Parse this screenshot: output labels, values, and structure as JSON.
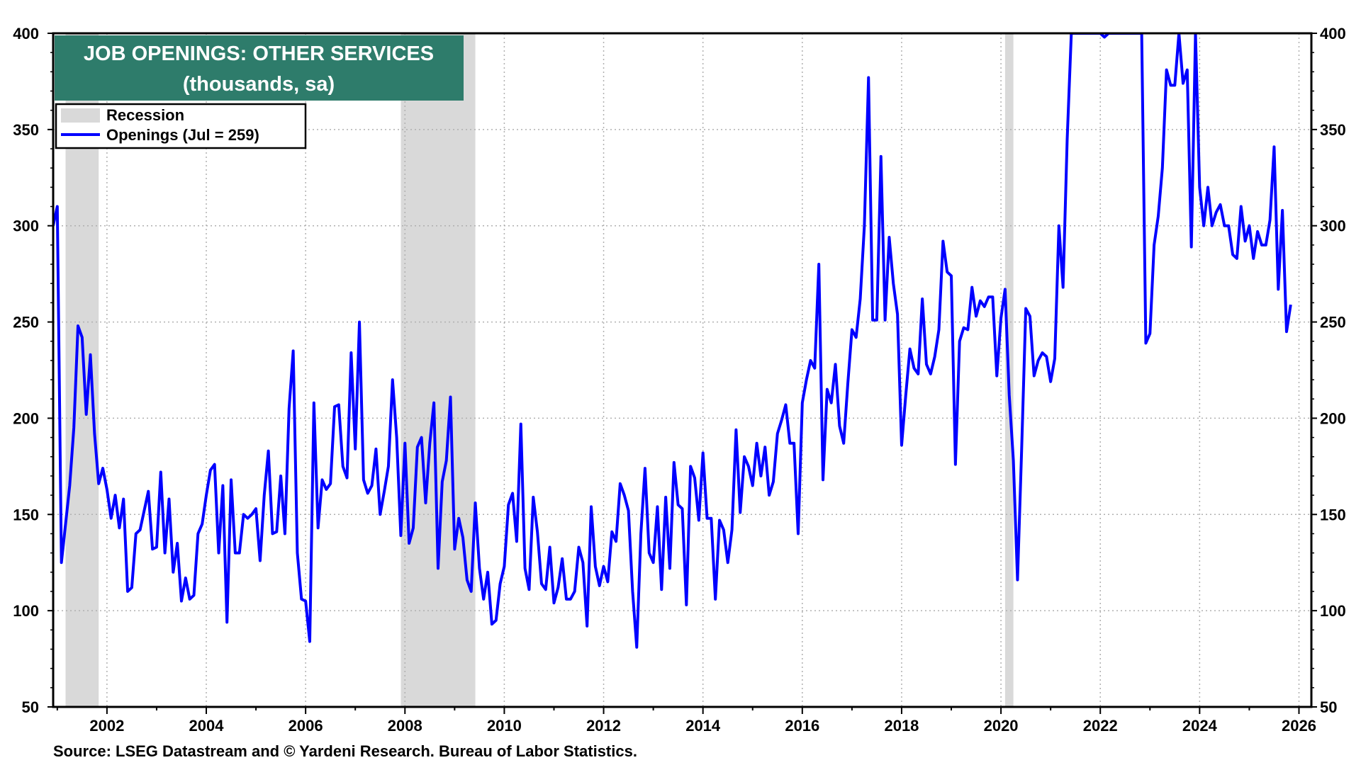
{
  "chart_data": {
    "type": "line",
    "title": "JOB OPENINGS: OTHER SERVICES",
    "subtitle": "(thousands, sa)",
    "source": "Source: LSEG Datastream and © Yardeni Research. Bureau of Labor Statistics.",
    "legend": {
      "placement": "top-left",
      "recession_label": "Recession",
      "series_label": "Openings (Jul = 259)"
    },
    "ylim": [
      50,
      400
    ],
    "yticks": [
      50,
      100,
      150,
      200,
      250,
      300,
      350,
      400
    ],
    "xlim": [
      2000.917,
      2026.25
    ],
    "xticks": [
      2002,
      2004,
      2006,
      2008,
      2010,
      2012,
      2014,
      2016,
      2018,
      2020,
      2022,
      2024,
      2026
    ],
    "grid": true,
    "recessions": [
      {
        "start": 2001.167,
        "end": 2001.833
      },
      {
        "start": 2007.917,
        "end": 2009.417
      },
      {
        "start": 2020.083,
        "end": 2020.25
      }
    ],
    "colors": {
      "series": "#0000ff",
      "recession": "#d9d9d9",
      "title_bg": "#2e7c6b",
      "title_text": "#ffffff",
      "grid": "#b0b0b0"
    },
    "series": [
      {
        "name": "Openings (Jul = 259)",
        "start": "2000-12",
        "frequency": "monthly",
        "values": [
          300,
          310,
          125,
          145,
          165,
          195,
          248,
          242,
          202,
          233,
          192,
          166,
          174,
          163,
          148,
          160,
          143,
          158,
          110,
          112,
          140,
          142,
          152,
          162,
          132,
          133,
          172,
          130,
          158,
          120,
          135,
          105,
          117,
          106,
          108,
          140,
          145,
          160,
          173,
          176,
          130,
          165,
          94,
          168,
          130,
          130,
          150,
          148,
          150,
          153,
          126,
          160,
          183,
          140,
          141,
          170,
          140,
          205,
          235,
          130,
          106,
          105,
          84,
          208,
          143,
          168,
          163,
          166,
          206,
          207,
          175,
          169,
          234,
          184,
          250,
          168,
          161,
          165,
          184,
          150,
          162,
          175,
          220,
          190,
          139,
          187,
          135,
          143,
          185,
          190,
          156,
          187,
          208,
          122,
          167,
          178,
          211,
          132,
          148,
          138,
          116,
          110,
          156,
          122,
          106,
          120,
          93,
          95,
          114,
          123,
          155,
          161,
          136,
          197,
          122,
          111,
          159,
          141,
          114,
          111,
          133,
          104,
          112,
          127,
          106,
          106,
          110,
          133,
          125,
          92,
          154,
          123,
          113,
          123,
          115,
          141,
          136,
          166,
          160,
          152,
          110,
          81,
          140,
          174,
          130,
          125,
          154,
          111,
          159,
          122,
          177,
          155,
          153,
          103,
          175,
          169,
          147,
          182,
          148,
          148,
          106,
          147,
          142,
          125,
          142,
          194,
          151,
          180,
          175,
          165,
          187,
          170,
          185,
          160,
          167,
          192,
          199,
          207,
          187,
          187,
          140,
          208,
          220,
          230,
          226,
          280,
          168,
          215,
          208,
          228,
          196,
          187,
          218,
          246,
          242,
          262,
          300,
          377,
          251,
          251,
          336,
          251,
          294,
          270,
          254,
          186,
          212,
          236,
          226,
          223,
          262,
          228,
          223,
          232,
          246,
          292,
          276,
          274,
          176,
          240,
          247,
          246,
          268,
          253,
          261,
          258,
          263,
          263,
          222,
          252,
          267,
          212,
          178,
          116,
          184,
          257,
          253,
          222,
          230,
          234,
          232,
          219,
          231,
          300,
          268,
          345,
          400,
          400,
          400,
          400,
          400,
          400,
          400,
          400,
          398,
          400,
          400,
          400,
          400,
          400,
          400,
          400,
          400,
          400,
          239,
          244,
          290,
          305,
          330,
          381,
          373,
          373,
          400,
          374,
          381,
          289,
          400,
          320,
          300,
          320,
          300,
          307,
          311,
          300,
          300,
          285,
          283,
          310,
          292,
          300,
          283,
          297,
          290,
          290,
          303,
          341,
          267,
          308,
          245,
          259
        ]
      }
    ]
  }
}
